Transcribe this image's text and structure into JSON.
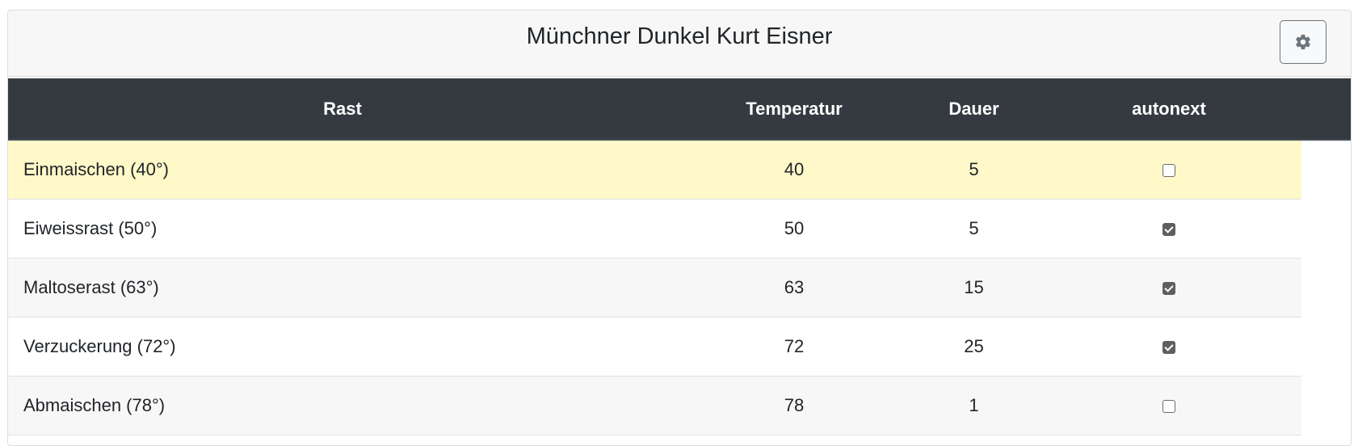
{
  "header": {
    "title": "Münchner Dunkel Kurt Eisner",
    "settings_icon": "gear-icon"
  },
  "table": {
    "columns": [
      "Rast",
      "Temperatur",
      "Dauer",
      "autonext"
    ],
    "rows": [
      {
        "name": "Einmaischen (40°)",
        "temperatur": "40",
        "dauer": "5",
        "autonext": false,
        "active": true
      },
      {
        "name": "Eiweissrast (50°)",
        "temperatur": "50",
        "dauer": "5",
        "autonext": true,
        "active": false
      },
      {
        "name": "Maltoserast (63°)",
        "temperatur": "63",
        "dauer": "15",
        "autonext": true,
        "active": false
      },
      {
        "name": "Verzuckerung (72°)",
        "temperatur": "72",
        "dauer": "25",
        "autonext": true,
        "active": false
      },
      {
        "name": "Abmaischen (78°)",
        "temperatur": "78",
        "dauer": "1",
        "autonext": false,
        "active": false
      }
    ]
  },
  "colors": {
    "header_bg": "#343a40",
    "active_row": "#fff8c8",
    "striped_row": "#f7f7f7"
  }
}
